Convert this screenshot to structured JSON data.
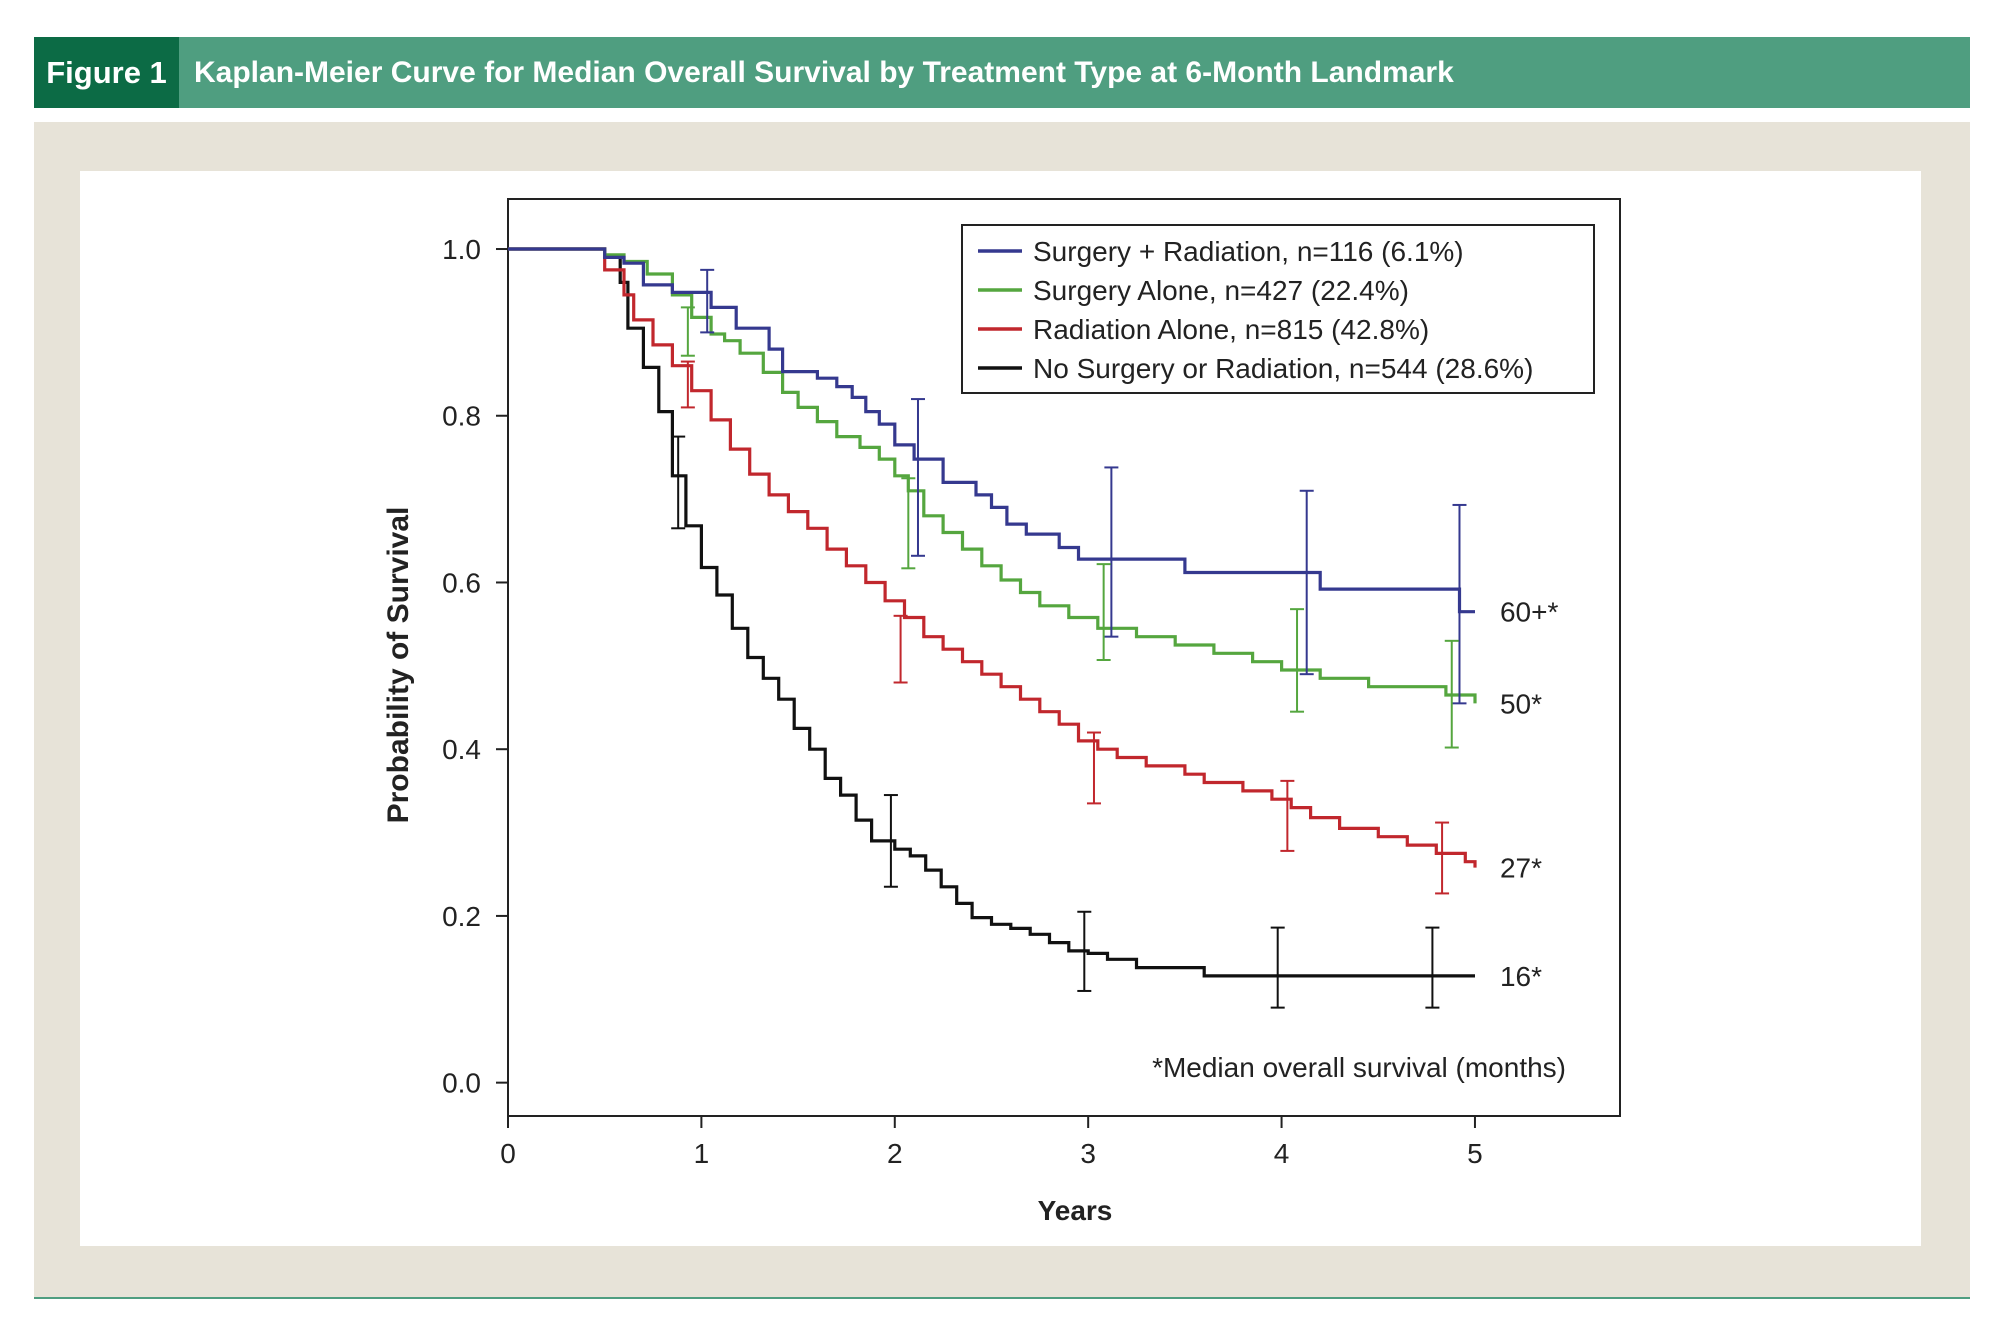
{
  "figure": {
    "label": "Figure 1",
    "title": "Kaplan-Meier Curve for Median Overall Survival by Treatment Type at 6-Month Landmark"
  },
  "chart_data": {
    "type": "line",
    "xlabel": "Years",
    "ylabel": "Probability of Survival",
    "xlim": [
      0,
      5.75
    ],
    "ylim": [
      -0.04,
      1.06
    ],
    "xticks": [
      "0",
      "1",
      "2",
      "3",
      "4",
      "5"
    ],
    "yticks": [
      "0.0",
      "0.2",
      "0.4",
      "0.6",
      "0.8",
      "1.0"
    ],
    "legend_position": "top-right",
    "annotation": "*Median overall survival (months)",
    "series": [
      {
        "name": "Surgery + Radiation, n=116 (6.1%)",
        "color": "#35398f",
        "end_label": "60+*",
        "end_y": 0.565,
        "steps": [
          [
            0,
            1.0
          ],
          [
            0.5,
            1.0
          ],
          [
            0.5,
            0.99
          ],
          [
            0.6,
            0.99
          ],
          [
            0.6,
            0.983
          ],
          [
            0.7,
            0.983
          ],
          [
            0.7,
            0.957
          ],
          [
            0.85,
            0.957
          ],
          [
            0.85,
            0.948
          ],
          [
            1.05,
            0.948
          ],
          [
            1.05,
            0.93
          ],
          [
            1.18,
            0.93
          ],
          [
            1.18,
            0.905
          ],
          [
            1.35,
            0.905
          ],
          [
            1.35,
            0.88
          ],
          [
            1.42,
            0.88
          ],
          [
            1.42,
            0.853
          ],
          [
            1.6,
            0.853
          ],
          [
            1.6,
            0.845
          ],
          [
            1.7,
            0.845
          ],
          [
            1.7,
            0.835
          ],
          [
            1.78,
            0.835
          ],
          [
            1.78,
            0.822
          ],
          [
            1.85,
            0.822
          ],
          [
            1.85,
            0.805
          ],
          [
            1.92,
            0.805
          ],
          [
            1.92,
            0.79
          ],
          [
            2.0,
            0.79
          ],
          [
            2.0,
            0.765
          ],
          [
            2.1,
            0.765
          ],
          [
            2.1,
            0.748
          ],
          [
            2.25,
            0.748
          ],
          [
            2.25,
            0.72
          ],
          [
            2.42,
            0.72
          ],
          [
            2.42,
            0.705
          ],
          [
            2.5,
            0.705
          ],
          [
            2.5,
            0.69
          ],
          [
            2.58,
            0.69
          ],
          [
            2.58,
            0.67
          ],
          [
            2.68,
            0.67
          ],
          [
            2.68,
            0.658
          ],
          [
            2.85,
            0.658
          ],
          [
            2.85,
            0.642
          ],
          [
            2.95,
            0.642
          ],
          [
            2.95,
            0.628
          ],
          [
            3.5,
            0.628
          ],
          [
            3.5,
            0.612
          ],
          [
            4.2,
            0.612
          ],
          [
            4.2,
            0.592
          ],
          [
            4.92,
            0.592
          ],
          [
            4.92,
            0.565
          ],
          [
            5.0,
            0.565
          ]
        ],
        "ci": [
          [
            1.03,
            0.975,
            0.9
          ],
          [
            2.12,
            0.82,
            0.632
          ],
          [
            3.12,
            0.738,
            0.535
          ],
          [
            4.13,
            0.71,
            0.49
          ],
          [
            4.92,
            0.693,
            0.455
          ]
        ]
      },
      {
        "name": "Surgery Alone, n=427 (22.4%)",
        "color": "#55a63f",
        "end_label": "50*",
        "end_y": 0.455,
        "steps": [
          [
            0,
            1.0
          ],
          [
            0.5,
            1.0
          ],
          [
            0.5,
            0.993
          ],
          [
            0.6,
            0.993
          ],
          [
            0.6,
            0.985
          ],
          [
            0.72,
            0.985
          ],
          [
            0.72,
            0.97
          ],
          [
            0.85,
            0.97
          ],
          [
            0.85,
            0.945
          ],
          [
            0.95,
            0.945
          ],
          [
            0.95,
            0.918
          ],
          [
            1.05,
            0.918
          ],
          [
            1.05,
            0.898
          ],
          [
            1.12,
            0.898
          ],
          [
            1.12,
            0.89
          ],
          [
            1.2,
            0.89
          ],
          [
            1.2,
            0.875
          ],
          [
            1.32,
            0.875
          ],
          [
            1.32,
            0.852
          ],
          [
            1.42,
            0.852
          ],
          [
            1.42,
            0.828
          ],
          [
            1.5,
            0.828
          ],
          [
            1.5,
            0.81
          ],
          [
            1.6,
            0.81
          ],
          [
            1.6,
            0.793
          ],
          [
            1.7,
            0.793
          ],
          [
            1.7,
            0.775
          ],
          [
            1.82,
            0.775
          ],
          [
            1.82,
            0.762
          ],
          [
            1.92,
            0.762
          ],
          [
            1.92,
            0.748
          ],
          [
            2.0,
            0.748
          ],
          [
            2.0,
            0.728
          ],
          [
            2.07,
            0.728
          ],
          [
            2.07,
            0.71
          ],
          [
            2.15,
            0.71
          ],
          [
            2.15,
            0.68
          ],
          [
            2.25,
            0.68
          ],
          [
            2.25,
            0.66
          ],
          [
            2.35,
            0.66
          ],
          [
            2.35,
            0.64
          ],
          [
            2.45,
            0.64
          ],
          [
            2.45,
            0.62
          ],
          [
            2.55,
            0.62
          ],
          [
            2.55,
            0.603
          ],
          [
            2.65,
            0.603
          ],
          [
            2.65,
            0.588
          ],
          [
            2.75,
            0.588
          ],
          [
            2.75,
            0.572
          ],
          [
            2.9,
            0.572
          ],
          [
            2.9,
            0.558
          ],
          [
            3.05,
            0.558
          ],
          [
            3.05,
            0.545
          ],
          [
            3.25,
            0.545
          ],
          [
            3.25,
            0.535
          ],
          [
            3.45,
            0.535
          ],
          [
            3.45,
            0.525
          ],
          [
            3.65,
            0.525
          ],
          [
            3.65,
            0.515
          ],
          [
            3.85,
            0.515
          ],
          [
            3.85,
            0.505
          ],
          [
            4.0,
            0.505
          ],
          [
            4.0,
            0.495
          ],
          [
            4.2,
            0.495
          ],
          [
            4.2,
            0.485
          ],
          [
            4.45,
            0.485
          ],
          [
            4.45,
            0.475
          ],
          [
            4.85,
            0.475
          ],
          [
            4.85,
            0.465
          ],
          [
            5.0,
            0.465
          ],
          [
            5.0,
            0.455
          ]
        ],
        "ci": [
          [
            0.93,
            0.93,
            0.872
          ],
          [
            2.07,
            0.725,
            0.617
          ],
          [
            3.08,
            0.622,
            0.507
          ],
          [
            4.08,
            0.568,
            0.445
          ],
          [
            4.88,
            0.53,
            0.402
          ]
        ]
      },
      {
        "name": "Radiation Alone, n=815 (42.8%)",
        "color": "#c1272d",
        "end_label": "27*",
        "end_y": 0.258,
        "steps": [
          [
            0,
            1.0
          ],
          [
            0.5,
            1.0
          ],
          [
            0.5,
            0.975
          ],
          [
            0.6,
            0.975
          ],
          [
            0.6,
            0.945
          ],
          [
            0.65,
            0.945
          ],
          [
            0.65,
            0.915
          ],
          [
            0.75,
            0.915
          ],
          [
            0.75,
            0.885
          ],
          [
            0.85,
            0.885
          ],
          [
            0.85,
            0.86
          ],
          [
            0.95,
            0.86
          ],
          [
            0.95,
            0.83
          ],
          [
            1.05,
            0.83
          ],
          [
            1.05,
            0.795
          ],
          [
            1.15,
            0.795
          ],
          [
            1.15,
            0.76
          ],
          [
            1.25,
            0.76
          ],
          [
            1.25,
            0.73
          ],
          [
            1.35,
            0.73
          ],
          [
            1.35,
            0.705
          ],
          [
            1.45,
            0.705
          ],
          [
            1.45,
            0.685
          ],
          [
            1.55,
            0.685
          ],
          [
            1.55,
            0.665
          ],
          [
            1.65,
            0.665
          ],
          [
            1.65,
            0.64
          ],
          [
            1.75,
            0.64
          ],
          [
            1.75,
            0.62
          ],
          [
            1.85,
            0.62
          ],
          [
            1.85,
            0.6
          ],
          [
            1.95,
            0.6
          ],
          [
            1.95,
            0.578
          ],
          [
            2.05,
            0.578
          ],
          [
            2.05,
            0.558
          ],
          [
            2.15,
            0.558
          ],
          [
            2.15,
            0.535
          ],
          [
            2.25,
            0.535
          ],
          [
            2.25,
            0.52
          ],
          [
            2.35,
            0.52
          ],
          [
            2.35,
            0.505
          ],
          [
            2.45,
            0.505
          ],
          [
            2.45,
            0.49
          ],
          [
            2.55,
            0.49
          ],
          [
            2.55,
            0.475
          ],
          [
            2.65,
            0.475
          ],
          [
            2.65,
            0.46
          ],
          [
            2.75,
            0.46
          ],
          [
            2.75,
            0.445
          ],
          [
            2.85,
            0.445
          ],
          [
            2.85,
            0.43
          ],
          [
            2.95,
            0.43
          ],
          [
            2.95,
            0.41
          ],
          [
            3.05,
            0.41
          ],
          [
            3.05,
            0.4
          ],
          [
            3.15,
            0.4
          ],
          [
            3.15,
            0.39
          ],
          [
            3.3,
            0.39
          ],
          [
            3.3,
            0.38
          ],
          [
            3.5,
            0.38
          ],
          [
            3.5,
            0.37
          ],
          [
            3.6,
            0.37
          ],
          [
            3.6,
            0.36
          ],
          [
            3.8,
            0.36
          ],
          [
            3.8,
            0.35
          ],
          [
            3.95,
            0.35
          ],
          [
            3.95,
            0.34
          ],
          [
            4.05,
            0.34
          ],
          [
            4.05,
            0.33
          ],
          [
            4.15,
            0.33
          ],
          [
            4.15,
            0.318
          ],
          [
            4.3,
            0.318
          ],
          [
            4.3,
            0.305
          ],
          [
            4.5,
            0.305
          ],
          [
            4.5,
            0.295
          ],
          [
            4.65,
            0.295
          ],
          [
            4.65,
            0.285
          ],
          [
            4.8,
            0.285
          ],
          [
            4.8,
            0.275
          ],
          [
            4.95,
            0.275
          ],
          [
            4.95,
            0.265
          ],
          [
            5.0,
            0.265
          ],
          [
            5.0,
            0.258
          ]
        ],
        "ci": [
          [
            0.93,
            0.865,
            0.81
          ],
          [
            2.03,
            0.56,
            0.48
          ],
          [
            3.03,
            0.42,
            0.335
          ],
          [
            4.03,
            0.362,
            0.278
          ],
          [
            4.83,
            0.312,
            0.227
          ]
        ]
      },
      {
        "name": "No Surgery or Radiation, n=544 (28.6%)",
        "color": "#111111",
        "end_label": "16*",
        "end_y": 0.128,
        "steps": [
          [
            0,
            1.0
          ],
          [
            0.5,
            1.0
          ],
          [
            0.5,
            0.99
          ],
          [
            0.58,
            0.99
          ],
          [
            0.58,
            0.96
          ],
          [
            0.62,
            0.96
          ],
          [
            0.62,
            0.905
          ],
          [
            0.7,
            0.905
          ],
          [
            0.7,
            0.858
          ],
          [
            0.78,
            0.858
          ],
          [
            0.78,
            0.805
          ],
          [
            0.85,
            0.805
          ],
          [
            0.85,
            0.728
          ],
          [
            0.92,
            0.728
          ],
          [
            0.92,
            0.668
          ],
          [
            1.0,
            0.668
          ],
          [
            1.0,
            0.618
          ],
          [
            1.08,
            0.618
          ],
          [
            1.08,
            0.585
          ],
          [
            1.16,
            0.585
          ],
          [
            1.16,
            0.545
          ],
          [
            1.24,
            0.545
          ],
          [
            1.24,
            0.51
          ],
          [
            1.32,
            0.51
          ],
          [
            1.32,
            0.485
          ],
          [
            1.4,
            0.485
          ],
          [
            1.4,
            0.46
          ],
          [
            1.48,
            0.46
          ],
          [
            1.48,
            0.425
          ],
          [
            1.56,
            0.425
          ],
          [
            1.56,
            0.4
          ],
          [
            1.64,
            0.4
          ],
          [
            1.64,
            0.365
          ],
          [
            1.72,
            0.365
          ],
          [
            1.72,
            0.345
          ],
          [
            1.8,
            0.345
          ],
          [
            1.8,
            0.315
          ],
          [
            1.88,
            0.315
          ],
          [
            1.88,
            0.29
          ],
          [
            2.0,
            0.29
          ],
          [
            2.0,
            0.28
          ],
          [
            2.08,
            0.28
          ],
          [
            2.08,
            0.272
          ],
          [
            2.16,
            0.272
          ],
          [
            2.16,
            0.255
          ],
          [
            2.24,
            0.255
          ],
          [
            2.24,
            0.235
          ],
          [
            2.32,
            0.235
          ],
          [
            2.32,
            0.215
          ],
          [
            2.4,
            0.215
          ],
          [
            2.4,
            0.198
          ],
          [
            2.5,
            0.198
          ],
          [
            2.5,
            0.19
          ],
          [
            2.6,
            0.19
          ],
          [
            2.6,
            0.185
          ],
          [
            2.7,
            0.185
          ],
          [
            2.7,
            0.178
          ],
          [
            2.8,
            0.178
          ],
          [
            2.8,
            0.168
          ],
          [
            2.9,
            0.168
          ],
          [
            2.9,
            0.158
          ],
          [
            3.0,
            0.158
          ],
          [
            3.0,
            0.155
          ],
          [
            3.1,
            0.155
          ],
          [
            3.1,
            0.148
          ],
          [
            3.25,
            0.148
          ],
          [
            3.25,
            0.138
          ],
          [
            3.6,
            0.138
          ],
          [
            3.6,
            0.128
          ],
          [
            5.0,
            0.128
          ]
        ],
        "ci": [
          [
            0.88,
            0.775,
            0.665
          ],
          [
            1.98,
            0.345,
            0.235
          ],
          [
            2.98,
            0.205,
            0.11
          ],
          [
            3.98,
            0.186,
            0.09
          ],
          [
            4.78,
            0.186,
            0.09
          ]
        ]
      }
    ]
  }
}
